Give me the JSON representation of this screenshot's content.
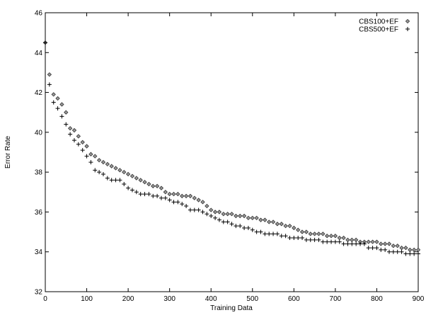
{
  "chart_data": {
    "type": "scatter",
    "title": "",
    "xlabel": "Training Data",
    "ylabel": "Error Rate",
    "xlim": [
      0,
      900
    ],
    "ylim": [
      32,
      46
    ],
    "xticks": [
      "0",
      "100",
      "200",
      "300",
      "400",
      "500",
      "600",
      "700",
      "800",
      "900"
    ],
    "yticks": [
      "32",
      "34",
      "36",
      "38",
      "40",
      "42",
      "44",
      "46"
    ],
    "grid": false,
    "legend_position": "top-right",
    "series": [
      {
        "name": "CBS100+EF",
        "marker": "diamond",
        "x": [
          0,
          10,
          20,
          30,
          40,
          50,
          60,
          70,
          80,
          90,
          100,
          110,
          120,
          130,
          140,
          150,
          160,
          170,
          180,
          190,
          200,
          210,
          220,
          230,
          240,
          250,
          260,
          270,
          280,
          290,
          300,
          310,
          320,
          330,
          340,
          350,
          360,
          370,
          380,
          390,
          400,
          410,
          420,
          430,
          440,
          450,
          460,
          470,
          480,
          490,
          500,
          510,
          520,
          530,
          540,
          550,
          560,
          570,
          580,
          590,
          600,
          610,
          620,
          630,
          640,
          650,
          660,
          670,
          680,
          690,
          700,
          710,
          720,
          730,
          740,
          750,
          760,
          770,
          780,
          790,
          800,
          810,
          820,
          830,
          840,
          850,
          860,
          870,
          880,
          890,
          900
        ],
        "y": [
          44.5,
          42.9,
          41.9,
          41.7,
          41.4,
          41.0,
          40.2,
          40.1,
          39.8,
          39.5,
          39.3,
          38.9,
          38.8,
          38.6,
          38.5,
          38.4,
          38.3,
          38.2,
          38.1,
          38.0,
          37.9,
          37.8,
          37.7,
          37.6,
          37.5,
          37.4,
          37.3,
          37.3,
          37.2,
          37.0,
          36.9,
          36.9,
          36.9,
          36.8,
          36.8,
          36.8,
          36.7,
          36.6,
          36.5,
          36.3,
          36.1,
          36.0,
          36.0,
          35.9,
          35.9,
          35.9,
          35.8,
          35.8,
          35.8,
          35.7,
          35.7,
          35.7,
          35.6,
          35.6,
          35.5,
          35.5,
          35.4,
          35.4,
          35.3,
          35.3,
          35.2,
          35.1,
          35.0,
          35.0,
          34.9,
          34.9,
          34.9,
          34.9,
          34.8,
          34.8,
          34.8,
          34.7,
          34.7,
          34.6,
          34.6,
          34.6,
          34.5,
          34.5,
          34.5,
          34.5,
          34.5,
          34.4,
          34.4,
          34.4,
          34.3,
          34.3,
          34.2,
          34.2,
          34.1,
          34.1,
          34.1
        ]
      },
      {
        "name": "CBS500+EF",
        "marker": "plus",
        "x": [
          0,
          10,
          20,
          30,
          40,
          50,
          60,
          70,
          80,
          90,
          100,
          110,
          120,
          130,
          140,
          150,
          160,
          170,
          180,
          190,
          200,
          210,
          220,
          230,
          240,
          250,
          260,
          270,
          280,
          290,
          300,
          310,
          320,
          330,
          340,
          350,
          360,
          370,
          380,
          390,
          400,
          410,
          420,
          430,
          440,
          450,
          460,
          470,
          480,
          490,
          500,
          510,
          520,
          530,
          540,
          550,
          560,
          570,
          580,
          590,
          600,
          610,
          620,
          630,
          640,
          650,
          660,
          670,
          680,
          690,
          700,
          710,
          720,
          730,
          740,
          750,
          760,
          770,
          780,
          790,
          800,
          810,
          820,
          830,
          840,
          850,
          860,
          870,
          880,
          890,
          900
        ],
        "y": [
          44.5,
          42.4,
          41.5,
          41.2,
          40.8,
          40.4,
          39.9,
          39.6,
          39.4,
          39.1,
          38.8,
          38.5,
          38.1,
          38.0,
          37.9,
          37.7,
          37.6,
          37.6,
          37.6,
          37.4,
          37.2,
          37.1,
          37.0,
          36.9,
          36.9,
          36.9,
          36.8,
          36.8,
          36.7,
          36.7,
          36.6,
          36.5,
          36.5,
          36.4,
          36.3,
          36.1,
          36.1,
          36.1,
          36.0,
          35.9,
          35.8,
          35.7,
          35.6,
          35.5,
          35.5,
          35.4,
          35.3,
          35.3,
          35.2,
          35.2,
          35.1,
          35.0,
          35.0,
          34.9,
          34.9,
          34.9,
          34.9,
          34.8,
          34.8,
          34.7,
          34.7,
          34.7,
          34.7,
          34.6,
          34.6,
          34.6,
          34.6,
          34.5,
          34.5,
          34.5,
          34.5,
          34.5,
          34.4,
          34.4,
          34.4,
          34.4,
          34.4,
          34.4,
          34.2,
          34.2,
          34.2,
          34.1,
          34.1,
          34.0,
          34.0,
          34.0,
          34.0,
          33.9,
          33.9,
          33.9,
          33.9
        ]
      }
    ]
  }
}
